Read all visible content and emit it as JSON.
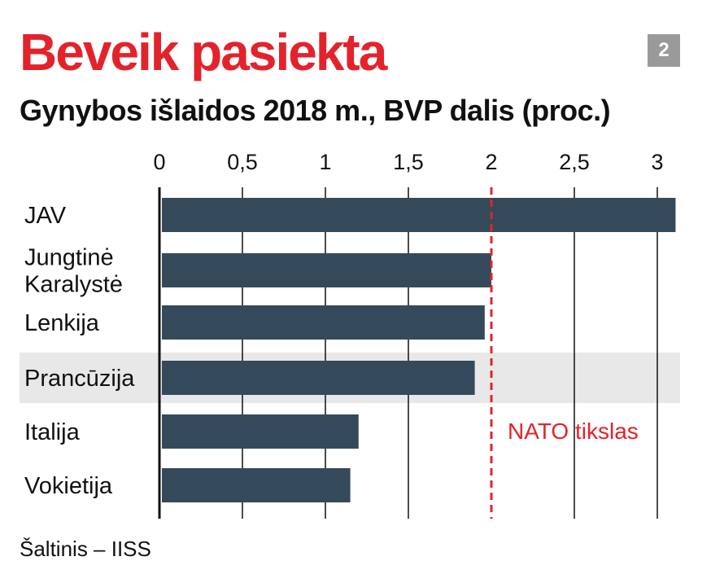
{
  "title": "Beveik pasiekta",
  "badge": "2",
  "subtitle": "Gynybos išlaidos 2018 m., BVP dalis (proc.)",
  "source": "Šaltinis – IISS",
  "colors": {
    "title": "#e3232b",
    "bar": "#344a5a",
    "target": "#e3232b",
    "highlight": "#e8e8e8",
    "badge": "#9a9a9a"
  },
  "chart_data": {
    "type": "bar",
    "orientation": "horizontal",
    "categories": [
      [
        "JAV"
      ],
      [
        "Jungtinė",
        "Karalystė"
      ],
      [
        "Lenkija"
      ],
      [
        "Prancūzija"
      ],
      [
        "Italija"
      ],
      [
        "Vokietija"
      ]
    ],
    "values": [
      3.11,
      2.0,
      1.96,
      1.9,
      1.2,
      1.15
    ],
    "xlim": [
      0,
      3.1
    ],
    "ticks": [
      0,
      0.5,
      1,
      1.5,
      2,
      2.5,
      3
    ],
    "tick_labels": [
      "0",
      "0,5",
      "1",
      "1,5",
      "2",
      "2,5",
      "3"
    ],
    "highlight_index": 3,
    "reference_line": {
      "value": 2,
      "label": "NATO tikslas"
    },
    "grid": true,
    "legend": "none"
  }
}
